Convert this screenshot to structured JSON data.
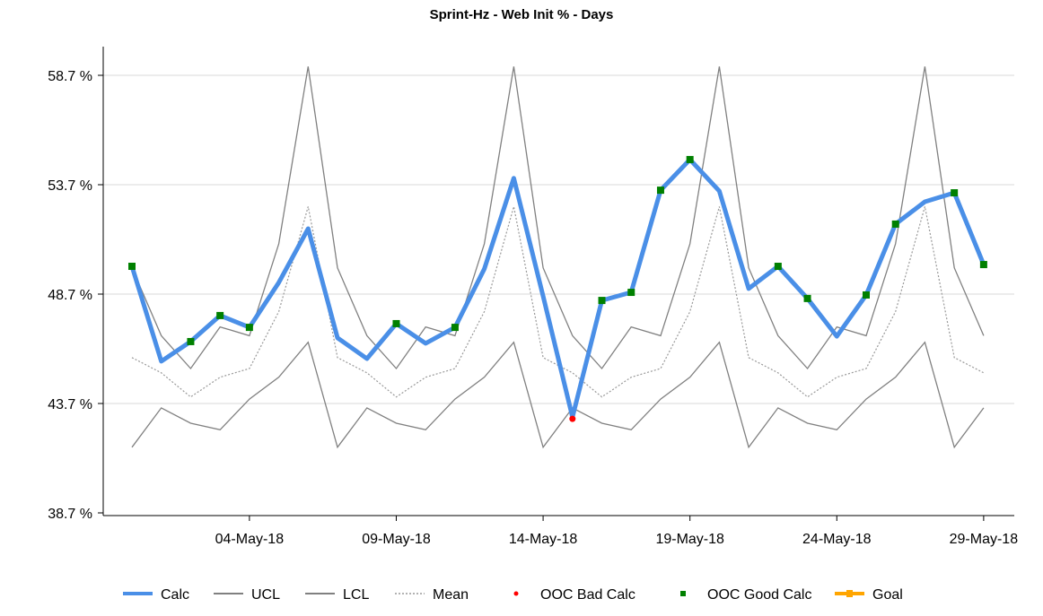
{
  "chart_data": {
    "type": "line",
    "title": "Sprint-Hz - Web Init % - Days",
    "xlabel": "",
    "ylabel": "",
    "ylim": [
      38.7,
      59.9
    ],
    "y_ticks": [
      "38.7 %",
      "43.7 %",
      "48.7 %",
      "53.7 %",
      "58.7 %"
    ],
    "y_tick_values": [
      38.7,
      43.7,
      48.7,
      53.7,
      58.7
    ],
    "x_ticks": [
      "04-May-18",
      "09-May-18",
      "14-May-18",
      "19-May-18",
      "24-May-18",
      "29-May-18"
    ],
    "grid": "horizontal",
    "legend_position": "bottom",
    "x": [
      "30-Apr-18",
      "01-May-18",
      "02-May-18",
      "03-May-18",
      "04-May-18",
      "05-May-18",
      "06-May-18",
      "07-May-18",
      "08-May-18",
      "09-May-18",
      "10-May-18",
      "11-May-18",
      "12-May-18",
      "13-May-18",
      "14-May-18",
      "15-May-18",
      "16-May-18",
      "17-May-18",
      "18-May-18",
      "19-May-18",
      "20-May-18",
      "21-May-18",
      "22-May-18",
      "23-May-18",
      "24-May-18",
      "25-May-18",
      "26-May-18",
      "27-May-18",
      "28-May-18",
      "29-May-18"
    ],
    "series": [
      {
        "name": "Calc",
        "color": "#4a8fe7",
        "style": "solid-thick",
        "values": [
          49.97,
          45.63,
          46.53,
          47.72,
          47.18,
          49.23,
          51.69,
          46.7,
          45.75,
          47.35,
          46.45,
          47.18,
          49.85,
          54.0,
          48.6,
          43.08,
          48.41,
          48.78,
          53.45,
          54.85,
          53.41,
          48.95,
          49.97,
          48.5,
          46.77,
          48.66,
          51.9,
          52.92,
          53.33,
          50.05
        ]
      },
      {
        "name": "UCL",
        "color": "#808080",
        "style": "solid",
        "values": [
          49.9,
          46.8,
          45.3,
          47.2,
          46.8,
          51.0,
          59.1,
          49.9,
          46.8,
          45.3,
          47.2,
          46.8,
          51.0,
          59.1,
          49.9,
          46.8,
          45.3,
          47.2,
          46.8,
          51.0,
          59.1,
          49.9,
          46.8,
          45.3,
          47.2,
          46.8,
          51.0,
          59.1,
          49.9,
          46.8
        ]
      },
      {
        "name": "LCL",
        "color": "#808080",
        "style": "solid",
        "values": [
          41.7,
          43.5,
          42.8,
          42.5,
          43.9,
          44.9,
          46.5,
          41.7,
          43.5,
          42.8,
          42.5,
          43.9,
          44.9,
          46.5,
          41.7,
          43.5,
          42.8,
          42.5,
          43.9,
          44.9,
          46.5,
          41.7,
          43.5,
          42.8,
          42.5,
          43.9,
          44.9,
          46.5,
          41.7,
          43.5
        ]
      },
      {
        "name": "Mean",
        "color": "#999999",
        "style": "dotted",
        "values": [
          45.8,
          45.1,
          44.0,
          44.9,
          45.3,
          47.9,
          52.7,
          45.8,
          45.1,
          44.0,
          44.9,
          45.3,
          47.9,
          52.7,
          45.8,
          45.1,
          44.0,
          44.9,
          45.3,
          47.9,
          52.7,
          45.8,
          45.1,
          44.0,
          44.9,
          45.3,
          47.9,
          52.7,
          45.8,
          45.1
        ]
      }
    ],
    "ooc_bad_calc": {
      "name": "OOC Bad Calc",
      "color": "#ff0000",
      "dates": [
        "15-May-18"
      ]
    },
    "ooc_good_calc": {
      "name": "OOC Good Calc",
      "color": "#008000",
      "dates": [
        "30-Apr-18",
        "02-May-18",
        "03-May-18",
        "04-May-18",
        "09-May-18",
        "11-May-18",
        "16-May-18",
        "17-May-18",
        "18-May-18",
        "19-May-18",
        "22-May-18",
        "23-May-18",
        "25-May-18",
        "26-May-18",
        "28-May-18",
        "29-May-18"
      ]
    },
    "goal": {
      "name": "Goal",
      "color": "#ffa500"
    }
  }
}
